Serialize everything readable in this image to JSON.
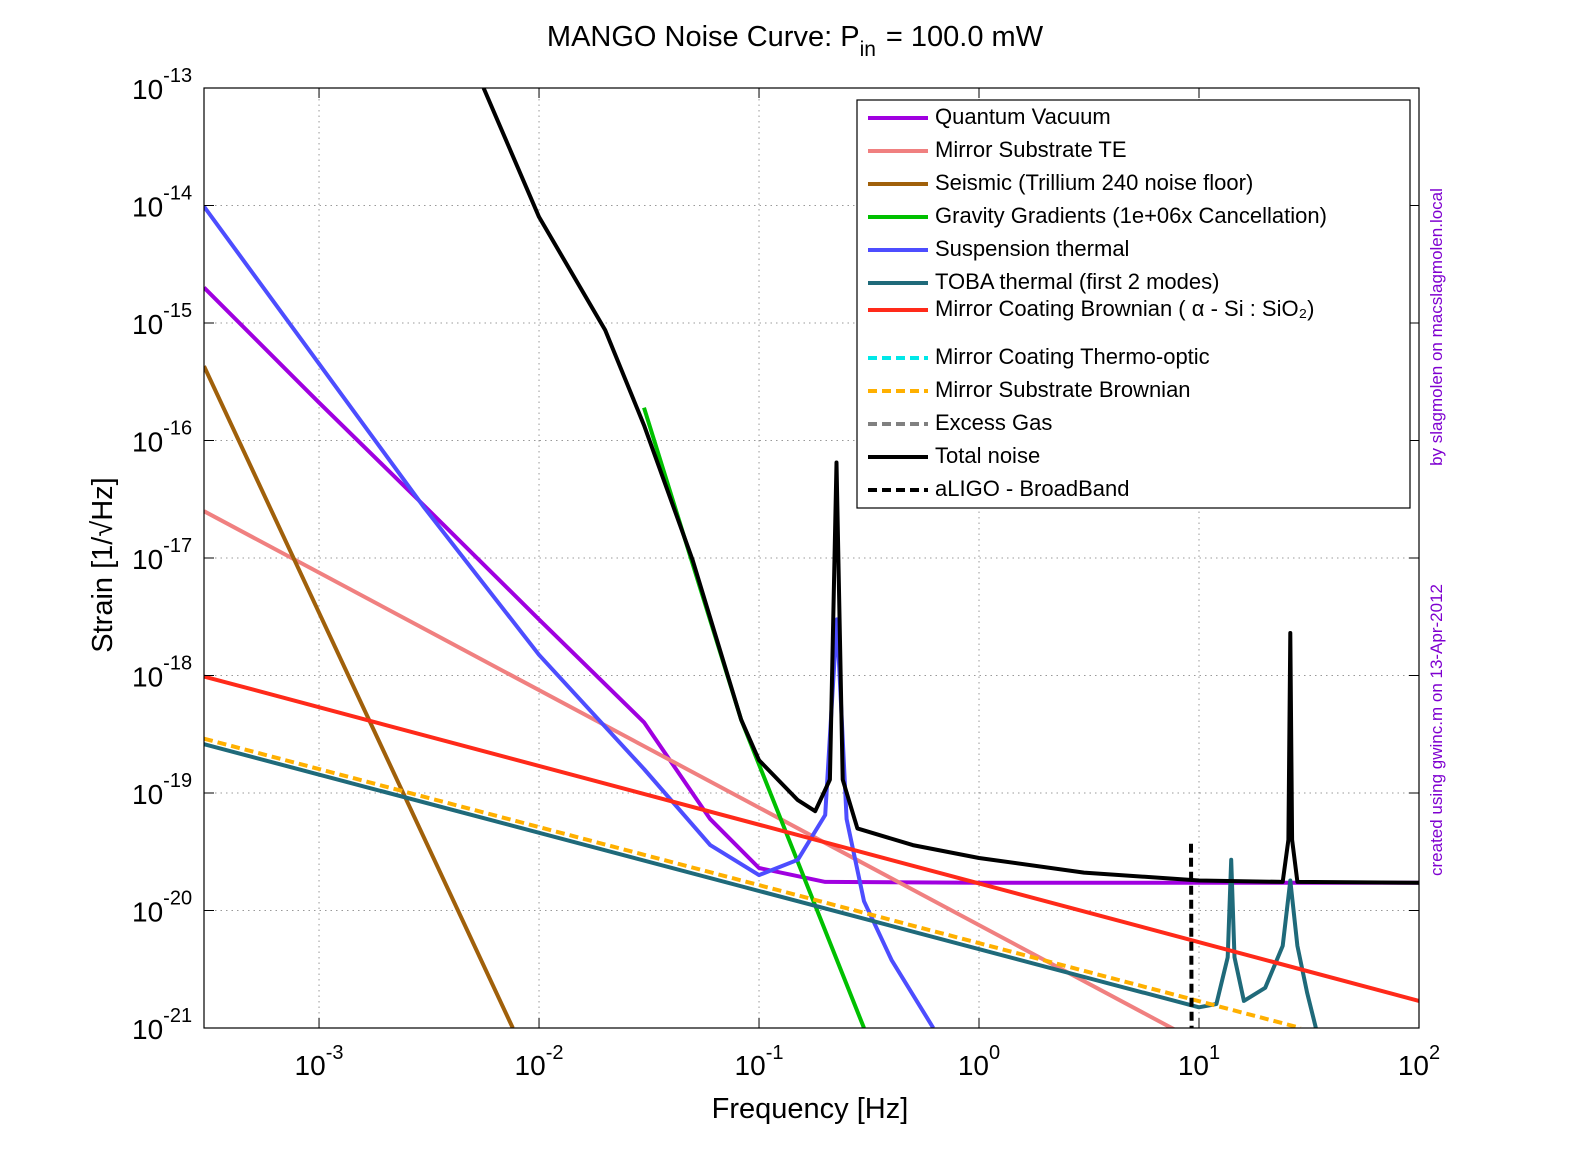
{
  "chart_data": {
    "type": "line",
    "title": "MANGO Noise Curve: P",
    "title_subscript": "in",
    "title_rest": "= 100.0 mW",
    "x_label": "Frequency [Hz]",
    "y_label": "Strain [1/√Hz]",
    "annotations": [
      "by slagmolen on macslagmolen.local",
      "created using gwinc.m on 13-Apr-2012"
    ],
    "xscale": "log",
    "yscale": "log",
    "grid": true,
    "legend": "upper right",
    "xlim": [
      0.0003,
      100
    ],
    "ylim": [
      1e-21,
      1e-13
    ],
    "xticks": [
      {
        "value": 0.001,
        "label": "10",
        "exponent": "-3"
      },
      {
        "value": 0.01,
        "label": "10",
        "exponent": "-2"
      },
      {
        "value": 0.1,
        "label": "10",
        "exponent": "-1"
      },
      {
        "value": 1,
        "label": "10",
        "exponent": "0"
      },
      {
        "value": 10,
        "label": "10",
        "exponent": "1"
      },
      {
        "value": 100,
        "label": "10",
        "exponent": "2"
      }
    ],
    "yticks": [
      {
        "value": 1e-21,
        "label": "10",
        "exponent": "-21"
      },
      {
        "value": 1e-20,
        "label": "10",
        "exponent": "-20"
      },
      {
        "value": 1e-19,
        "label": "10",
        "exponent": "-19"
      },
      {
        "value": 1e-18,
        "label": "10",
        "exponent": "-18"
      },
      {
        "value": 1e-17,
        "label": "10",
        "exponent": "-17"
      },
      {
        "value": 1e-16,
        "label": "10",
        "exponent": "-16"
      },
      {
        "value": 1e-15,
        "label": "10",
        "exponent": "-15"
      },
      {
        "value": 1e-14,
        "label": "10",
        "exponent": "-14"
      },
      {
        "value": 1e-13,
        "label": "10",
        "exponent": "-13"
      }
    ],
    "series": [
      {
        "name": "Quantum Vacuum",
        "color": "#a000e0",
        "style": "solid",
        "x": [
          0.0003,
          0.001,
          0.003,
          0.01,
          0.03,
          0.06,
          0.1,
          0.2,
          1,
          10,
          100
        ],
        "values": [
          2e-15,
          2.1e-16,
          2.8e-17,
          3e-18,
          4e-19,
          6e-20,
          2.3e-20,
          1.75e-20,
          1.72e-20,
          1.72e-20,
          1.72e-20
        ]
      },
      {
        "name": "Mirror Substrate TE",
        "color": "#f08080",
        "style": "solid",
        "x": [
          0.0003,
          8
        ],
        "values": [
          2.5e-17,
          9.4e-22
        ]
      },
      {
        "name": "Seismic (Trillium 240 noise floor)",
        "color": "#a0600a",
        "style": "solid",
        "x": [
          0.0003,
          0.0076
        ],
        "values": [
          4.3e-16,
          1e-21
        ]
      },
      {
        "name": "Gravity Gradients (1e+06x Cancellation)",
        "color": "#00c000",
        "style": "solid",
        "x": [
          0.03,
          0.083,
          0.3
        ],
        "values": [
          1.9e-16,
          4.2e-19,
          1e-21
        ]
      },
      {
        "name": "Suspension thermal",
        "color": "#4d4dff",
        "style": "solid",
        "x": [
          0.0003,
          0.001,
          0.003,
          0.01,
          0.03,
          0.06,
          0.1,
          0.15,
          0.2,
          0.226,
          0.25,
          0.3,
          0.4,
          0.62
        ],
        "values": [
          9.8e-15,
          4.5e-16,
          2.7e-17,
          1.5e-18,
          1.6e-19,
          3.6e-20,
          2e-20,
          2.7e-20,
          6.5e-20,
          3e-18,
          6e-20,
          1.2e-20,
          3.8e-21,
          1e-21
        ]
      },
      {
        "name": "TOBA thermal (first 2 modes)",
        "color": "#1f6a7a",
        "style": "solid",
        "x": [
          0.0003,
          10,
          12,
          13.5,
          14,
          14.5,
          16,
          20,
          24,
          26,
          28,
          31,
          34
        ],
        "values": [
          2.6e-19,
          1.5e-21,
          1.6e-21,
          4e-21,
          2.7e-20,
          4e-21,
          1.7e-21,
          2.2e-21,
          5e-21,
          1.8e-20,
          5e-21,
          2e-21,
          1e-21
        ]
      },
      {
        "name": "Mirror Coating Brownian ( α - Si : SiO₂)",
        "color": "#ff2a1a",
        "style": "solid",
        "x": [
          0.0003,
          100
        ],
        "values": [
          9.8e-19,
          1.7e-21
        ]
      },
      {
        "name": "Mirror Coating Thermo-optic",
        "color": "#00e8e8",
        "style": "dashed",
        "x": [],
        "values": []
      },
      {
        "name": "Mirror Substrate Brownian",
        "color": "#ffb000",
        "style": "dashed",
        "x": [
          0.0003,
          29
        ],
        "values": [
          2.9e-19,
          1e-21
        ]
      },
      {
        "name": "Excess Gas",
        "color": "#808080",
        "style": "dashed",
        "x": [],
        "values": []
      },
      {
        "name": "Total noise",
        "color": "#000000",
        "style": "solid",
        "x": [
          0.0056,
          0.01,
          0.02,
          0.03,
          0.05,
          0.083,
          0.1,
          0.15,
          0.18,
          0.21,
          0.225,
          0.24,
          0.28,
          0.5,
          1,
          3,
          10,
          24,
          25.5,
          26,
          26.5,
          28,
          100
        ],
        "values": [
          1e-13,
          8e-15,
          8.7e-16,
          1.35e-16,
          9.5e-18,
          4.2e-19,
          1.9e-19,
          8.7e-20,
          7e-20,
          1.3e-19,
          6.5e-17,
          1.3e-19,
          5e-20,
          3.6e-20,
          2.8e-20,
          2.1e-20,
          1.8e-20,
          1.75e-20,
          4e-20,
          2.3e-18,
          4e-20,
          1.75e-20,
          1.72e-20
        ]
      },
      {
        "name": "aLIGO - BroadBand",
        "color": "#000000",
        "style": "dashed",
        "x": [
          9.2,
          9.25
        ],
        "values": [
          3.7e-20,
          1e-21
        ]
      }
    ]
  }
}
